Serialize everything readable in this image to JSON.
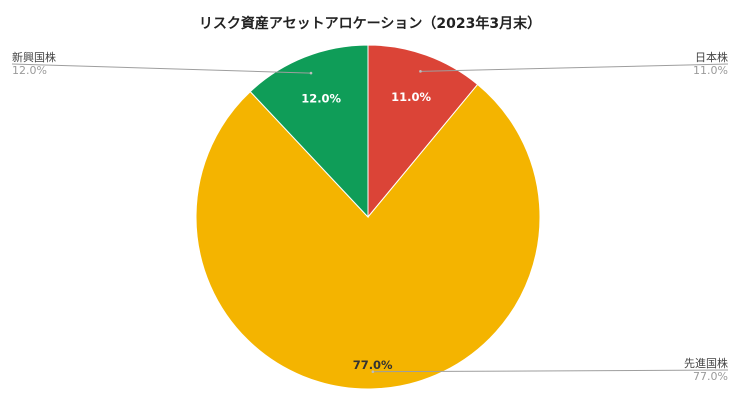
{
  "chart_data": {
    "type": "pie",
    "title": "リスク資産アセットアロケーション（2023年3月末）",
    "slices": [
      {
        "name": "日本株",
        "value": 11.0,
        "label": "11.0%",
        "color": "#db4437"
      },
      {
        "name": "先進国株",
        "value": 77.0,
        "label": "77.0%",
        "color": "#f4b400"
      },
      {
        "name": "新興国株",
        "value": 12.0,
        "label": "12.0%",
        "color": "#0f9d58"
      }
    ],
    "start_angle": "12 o'clock",
    "direction": "clockwise",
    "legend_placement": "callouts at chart edges"
  }
}
